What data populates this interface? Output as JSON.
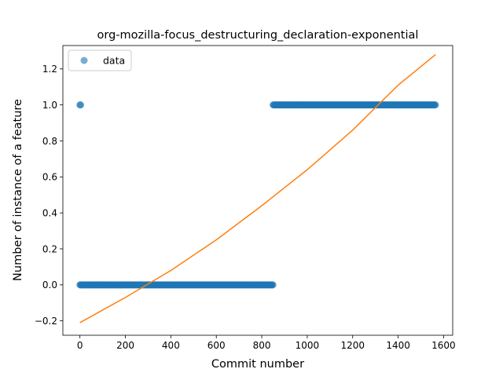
{
  "chart_data": {
    "type": "scatter",
    "title": "org-mozilla-focus_destructuring_declaration-exponential",
    "xlabel": "Commit number",
    "ylabel": "Number of instance of a feature",
    "xlim": [
      -75,
      1640
    ],
    "ylim": [
      -0.28,
      1.33
    ],
    "xticks": [
      0,
      200,
      400,
      600,
      800,
      1000,
      1200,
      1400,
      1600
    ],
    "xtick_labels": [
      "0",
      "200",
      "400",
      "600",
      "800",
      "1000",
      "1200",
      "1400",
      "1600"
    ],
    "yticks": [
      -0.2,
      0.0,
      0.2,
      0.4,
      0.6,
      0.8,
      1.0,
      1.2
    ],
    "ytick_labels": [
      "−0.2",
      "0.0",
      "0.2",
      "0.4",
      "0.6",
      "0.8",
      "1.0",
      "1.2"
    ],
    "legend": {
      "placement": "upper-left",
      "entries": [
        "data"
      ]
    },
    "grid": false,
    "series": [
      {
        "name": "data",
        "kind": "points",
        "color": "#1f77b4",
        "segments": [
          {
            "x_start": 0,
            "x_end": 5,
            "y": 1
          },
          {
            "x_start": 0,
            "x_end": 850,
            "y": 0
          },
          {
            "x_start": 850,
            "x_end": 1565,
            "y": 1
          }
        ]
      },
      {
        "kind": "fit-line",
        "color": "#ff7f0e",
        "points": [
          [
            0,
            -0.21
          ],
          [
            200,
            -0.07
          ],
          [
            400,
            0.08
          ],
          [
            600,
            0.25
          ],
          [
            800,
            0.44
          ],
          [
            1000,
            0.64
          ],
          [
            1200,
            0.86
          ],
          [
            1400,
            1.11
          ],
          [
            1565,
            1.28
          ]
        ]
      }
    ]
  }
}
